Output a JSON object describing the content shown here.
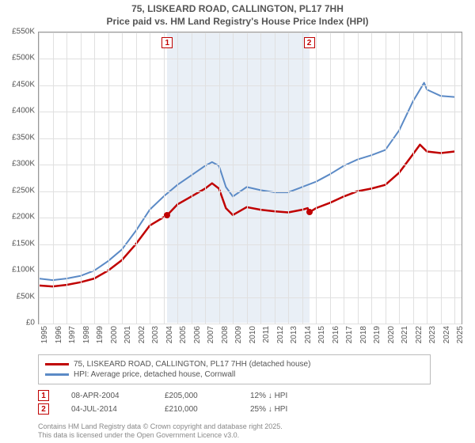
{
  "title": {
    "line1": "75, LISKEARD ROAD, CALLINGTON, PL17 7HH",
    "line2": "Price paid vs. HM Land Registry's House Price Index (HPI)",
    "fontsize": 12,
    "color": "#555555"
  },
  "chart": {
    "type": "line",
    "background_color": "#ffffff",
    "grid_color": "#e0e0e0",
    "axis_color": "#999999",
    "shade_color": "#dbe4f0",
    "x_years": [
      1995,
      1996,
      1997,
      1998,
      1999,
      2000,
      2001,
      2002,
      2003,
      2004,
      2005,
      2006,
      2007,
      2008,
      2009,
      2010,
      2011,
      2012,
      2013,
      2014,
      2015,
      2016,
      2017,
      2018,
      2019,
      2020,
      2021,
      2022,
      2023,
      2024,
      2025
    ],
    "xlim": [
      1995,
      2025.5
    ],
    "y_ticks": [
      0,
      50,
      100,
      150,
      200,
      250,
      300,
      350,
      400,
      450,
      500,
      550
    ],
    "y_tick_labels": [
      "£0",
      "£50K",
      "£100K",
      "£150K",
      "£200K",
      "£250K",
      "£300K",
      "£350K",
      "£400K",
      "£450K",
      "£500K",
      "£550K"
    ],
    "ylim": [
      0,
      550
    ],
    "tick_fontsize": 10,
    "shaded_ranges": [
      [
        2004.27,
        2014.51
      ]
    ],
    "series": [
      {
        "name": "price_paid",
        "color": "#c00000",
        "width": 2.5,
        "legend": "75, LISKEARD ROAD, CALLINGTON, PL17 7HH (detached house)",
        "points": [
          [
            1995,
            72
          ],
          [
            1996,
            70
          ],
          [
            1997,
            73
          ],
          [
            1998,
            78
          ],
          [
            1999,
            85
          ],
          [
            2000,
            100
          ],
          [
            2001,
            120
          ],
          [
            2002,
            150
          ],
          [
            2003,
            185
          ],
          [
            2004.27,
            205
          ],
          [
            2005,
            225
          ],
          [
            2006,
            240
          ],
          [
            2007,
            255
          ],
          [
            2007.5,
            265
          ],
          [
            2008,
            255
          ],
          [
            2008.5,
            218
          ],
          [
            2009,
            205
          ],
          [
            2010,
            220
          ],
          [
            2011,
            215
          ],
          [
            2012,
            212
          ],
          [
            2013,
            210
          ],
          [
            2014,
            215
          ],
          [
            2014.4,
            218
          ],
          [
            2014.51,
            210
          ],
          [
            2015,
            218
          ],
          [
            2016,
            228
          ],
          [
            2017,
            240
          ],
          [
            2018,
            250
          ],
          [
            2019,
            255
          ],
          [
            2020,
            262
          ],
          [
            2021,
            285
          ],
          [
            2022,
            320
          ],
          [
            2022.5,
            338
          ],
          [
            2023,
            325
          ],
          [
            2024,
            322
          ],
          [
            2025,
            325
          ]
        ]
      },
      {
        "name": "hpi",
        "color": "#5b8ac6",
        "width": 2,
        "legend": "HPI: Average price, detached house, Cornwall",
        "points": [
          [
            1995,
            85
          ],
          [
            1996,
            82
          ],
          [
            1997,
            85
          ],
          [
            1998,
            90
          ],
          [
            1999,
            100
          ],
          [
            2000,
            118
          ],
          [
            2001,
            140
          ],
          [
            2002,
            175
          ],
          [
            2003,
            215
          ],
          [
            2004,
            240
          ],
          [
            2005,
            262
          ],
          [
            2006,
            280
          ],
          [
            2007,
            298
          ],
          [
            2007.5,
            305
          ],
          [
            2008,
            298
          ],
          [
            2008.5,
            258
          ],
          [
            2009,
            240
          ],
          [
            2010,
            258
          ],
          [
            2011,
            252
          ],
          [
            2012,
            248
          ],
          [
            2013,
            248
          ],
          [
            2014,
            258
          ],
          [
            2015,
            268
          ],
          [
            2016,
            282
          ],
          [
            2017,
            298
          ],
          [
            2018,
            310
          ],
          [
            2019,
            318
          ],
          [
            2020,
            328
          ],
          [
            2021,
            365
          ],
          [
            2022,
            420
          ],
          [
            2022.8,
            455
          ],
          [
            2023,
            442
          ],
          [
            2024,
            430
          ],
          [
            2025,
            428
          ]
        ]
      }
    ],
    "sale_markers": [
      {
        "n": "1",
        "year": 2004.27,
        "price": 205
      },
      {
        "n": "2",
        "year": 2014.51,
        "price": 210
      }
    ]
  },
  "legend": {
    "border_color": "#bbbbbb"
  },
  "sales": [
    {
      "n": "1",
      "date": "08-APR-2004",
      "price": "£205,000",
      "delta": "12% ↓ HPI"
    },
    {
      "n": "2",
      "date": "04-JUL-2014",
      "price": "£210,000",
      "delta": "25% ↓ HPI"
    }
  ],
  "footnote": {
    "line1": "Contains HM Land Registry data © Crown copyright and database right 2025.",
    "line2": "This data is licensed under the Open Government Licence v3.0."
  }
}
